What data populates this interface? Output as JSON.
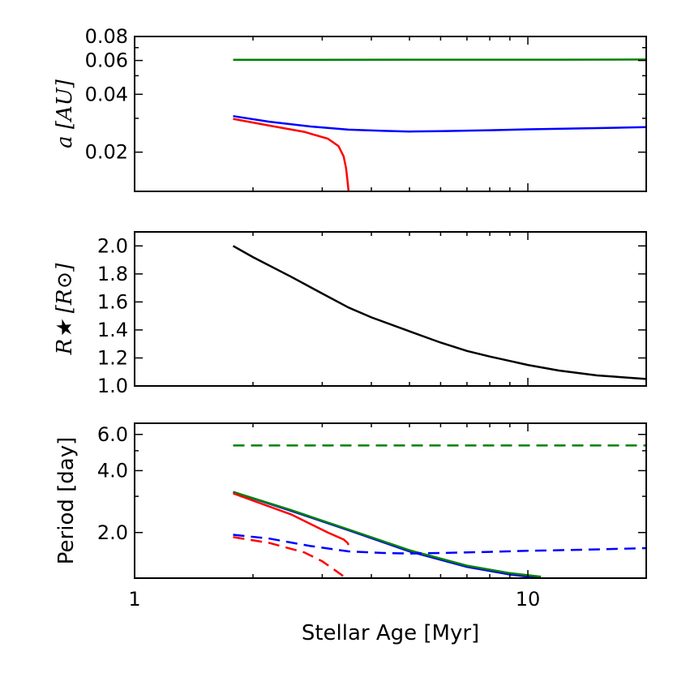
{
  "chart_data": [
    {
      "type": "line",
      "panel": "top",
      "ylabel": "a [AU]",
      "yscale": "log",
      "xscale": "log",
      "xlim": [
        1,
        20
      ],
      "ylim": [
        0.0125,
        0.08
      ],
      "yticks": [
        0.02,
        0.04,
        0.06,
        0.08
      ],
      "ytick_labels": [
        "0.02",
        "0.04",
        "0.06",
        "0.08"
      ],
      "series": [
        {
          "color": "#008000",
          "style": "solid",
          "x": [
            1.78,
            3,
            5,
            8,
            12,
            20
          ],
          "y": [
            0.0605,
            0.0605,
            0.0606,
            0.0606,
            0.0606,
            0.0607
          ]
        },
        {
          "color": "#0000ff",
          "style": "solid",
          "x": [
            1.78,
            2.2,
            2.8,
            3.5,
            4.3,
            5,
            6,
            8,
            10,
            14,
            20
          ],
          "y": [
            0.0308,
            0.0288,
            0.0272,
            0.0262,
            0.0258,
            0.0256,
            0.0257,
            0.026,
            0.0263,
            0.0266,
            0.027
          ]
        },
        {
          "color": "#ff0000",
          "style": "solid",
          "x": [
            1.78,
            2.2,
            2.7,
            3.1,
            3.3,
            3.4,
            3.45,
            3.48,
            3.5
          ],
          "y": [
            0.0298,
            0.0275,
            0.0255,
            0.0235,
            0.0215,
            0.019,
            0.0165,
            0.014,
            0.0125
          ]
        }
      ]
    },
    {
      "type": "line",
      "panel": "middle",
      "ylabel": "R★ [R⊙]",
      "xscale": "log",
      "xlim": [
        1,
        20
      ],
      "ylim": [
        1.0,
        2.1
      ],
      "yticks": [
        1.0,
        1.2,
        1.4,
        1.6,
        1.8,
        2.0
      ],
      "ytick_labels": [
        "1.0",
        "1.2",
        "1.4",
        "1.6",
        "1.8",
        "2.0"
      ],
      "series": [
        {
          "color": "#000000",
          "style": "solid",
          "x": [
            1.78,
            2,
            2.5,
            3,
            3.5,
            4,
            5,
            6,
            7,
            8,
            10,
            12,
            15,
            20
          ],
          "y": [
            2.0,
            1.92,
            1.78,
            1.66,
            1.56,
            1.49,
            1.39,
            1.31,
            1.25,
            1.21,
            1.15,
            1.11,
            1.075,
            1.05
          ]
        }
      ]
    },
    {
      "type": "line",
      "panel": "bottom",
      "ylabel": "Period [day]",
      "xlabel": "Stellar Age [Myr]",
      "yscale": "log",
      "xscale": "log",
      "xlim": [
        1,
        20
      ],
      "ylim": [
        1.2,
        6.8
      ],
      "yticks": [
        2.0,
        4.0,
        6.0
      ],
      "ytick_labels": [
        "2.0",
        "4.0",
        "6.0"
      ],
      "xticks": [
        1,
        10
      ],
      "xtick_labels": [
        "1",
        "10"
      ],
      "series": [
        {
          "color": "#008000",
          "style": "dashed",
          "x": [
            1.78,
            3,
            5,
            8,
            12,
            20
          ],
          "y": [
            5.3,
            5.3,
            5.3,
            5.3,
            5.3,
            5.3
          ]
        },
        {
          "color": "#0000ff",
          "style": "solid",
          "x": [
            1.78,
            2.5,
            3.5,
            5,
            7,
            9,
            10.8
          ],
          "y": [
            3.15,
            2.55,
            2.05,
            1.62,
            1.36,
            1.25,
            1.2
          ]
        },
        {
          "color": "#008000",
          "style": "solid",
          "x": [
            1.78,
            2.5,
            3.5,
            5,
            7,
            9,
            10.8
          ],
          "y": [
            3.15,
            2.57,
            2.07,
            1.64,
            1.38,
            1.27,
            1.22
          ]
        },
        {
          "color": "#ff0000",
          "style": "solid",
          "x": [
            1.78,
            2.5,
            3.1,
            3.4,
            3.48,
            3.5
          ],
          "y": [
            3.1,
            2.45,
            2.0,
            1.85,
            1.78,
            1.74
          ]
        },
        {
          "color": "#0000ff",
          "style": "dashed",
          "x": [
            1.78,
            2.2,
            2.8,
            3.5,
            4.3,
            5,
            6,
            8,
            10,
            14,
            20
          ],
          "y": [
            1.95,
            1.87,
            1.72,
            1.62,
            1.59,
            1.58,
            1.59,
            1.61,
            1.63,
            1.65,
            1.68
          ]
        },
        {
          "color": "#ff0000",
          "style": "dashed",
          "x": [
            1.78,
            2.2,
            2.7,
            3.0,
            3.2,
            3.35,
            3.45
          ],
          "y": [
            1.9,
            1.78,
            1.6,
            1.45,
            1.33,
            1.25,
            1.2
          ]
        }
      ]
    }
  ]
}
